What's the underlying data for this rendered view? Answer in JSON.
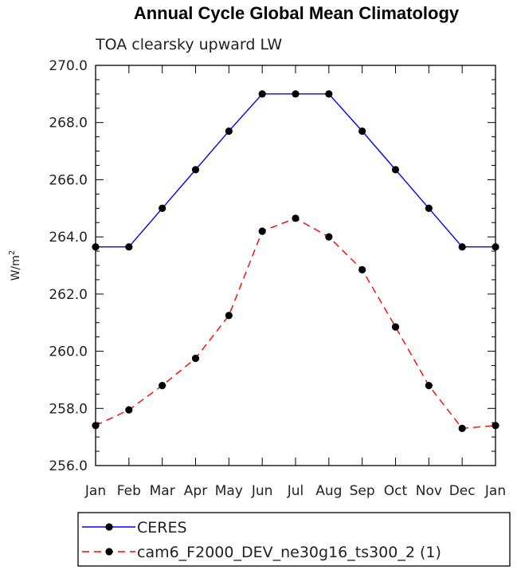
{
  "chart_data": {
    "type": "line",
    "title": "Annual Cycle Global Mean Climatology",
    "subtitle": "TOA clearsky upward LW",
    "xlabel": "",
    "ylabel": "W/m",
    "ylabel_sup": "2",
    "categories": [
      "Jan",
      "Feb",
      "Mar",
      "Apr",
      "May",
      "Jun",
      "Jul",
      "Aug",
      "Sep",
      "Oct",
      "Nov",
      "Dec",
      "Jan"
    ],
    "ylim": [
      256.0,
      270.0
    ],
    "yticks": [
      256.0,
      258.0,
      260.0,
      262.0,
      264.0,
      266.0,
      268.0,
      270.0
    ],
    "ytick_labels": [
      "256.0",
      "258.0",
      "260.0",
      "262.0",
      "264.0",
      "266.0",
      "268.0",
      "270.0"
    ],
    "series": [
      {
        "name": "CERES",
        "color": "#0000ff",
        "dash": "solid",
        "values": [
          263.65,
          263.65,
          265.0,
          266.35,
          267.7,
          269.0,
          269.0,
          269.0,
          267.7,
          266.35,
          265.0,
          263.65,
          263.65
        ]
      },
      {
        "name": "cam6_F2000_DEV_ne30g16_ts300_2 (1)",
        "color": "#ff0000",
        "dash": "dashed",
        "values": [
          257.4,
          257.95,
          258.8,
          259.75,
          261.25,
          264.2,
          264.65,
          264.0,
          262.85,
          260.85,
          258.8,
          257.3,
          257.4
        ]
      }
    ]
  }
}
